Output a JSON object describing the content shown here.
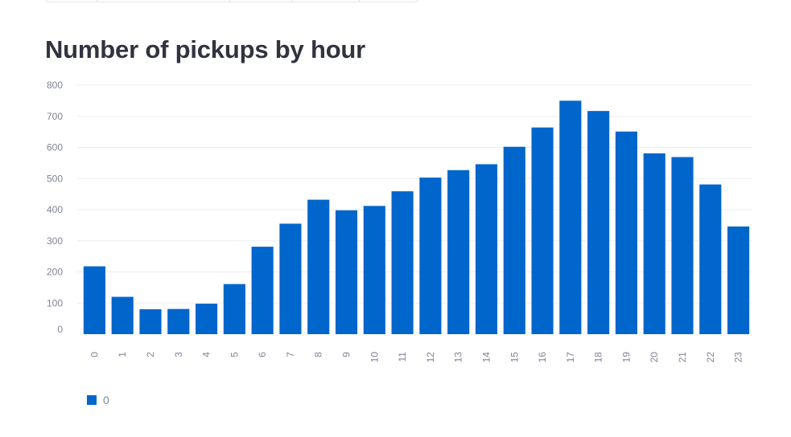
{
  "title": "Number of pickups by hour",
  "legend": {
    "label": "0"
  },
  "colors": {
    "bar": "#0066cc",
    "grid": "#ebedf0",
    "axis_text": "#808495",
    "title": "#31333f"
  },
  "chart_data": {
    "type": "bar",
    "title": "Number of pickups by hour",
    "xlabel": "",
    "ylabel": "",
    "categories": [
      "0",
      "1",
      "2",
      "3",
      "4",
      "5",
      "6",
      "7",
      "8",
      "9",
      "10",
      "11",
      "12",
      "13",
      "14",
      "15",
      "16",
      "17",
      "18",
      "19",
      "20",
      "21",
      "22",
      "23"
    ],
    "series": [
      {
        "name": "0",
        "values": [
          218,
          120,
          80,
          81,
          98,
          161,
          281,
          355,
          432,
          398,
          412,
          459,
          503,
          527,
          546,
          602,
          664,
          750,
          717,
          651,
          581,
          569,
          481,
          346
        ]
      }
    ],
    "ylim": [
      0,
      800
    ],
    "yticks": [
      0,
      100,
      200,
      300,
      400,
      500,
      600,
      700,
      800
    ],
    "grid": true,
    "legend_position": "bottom-left"
  }
}
